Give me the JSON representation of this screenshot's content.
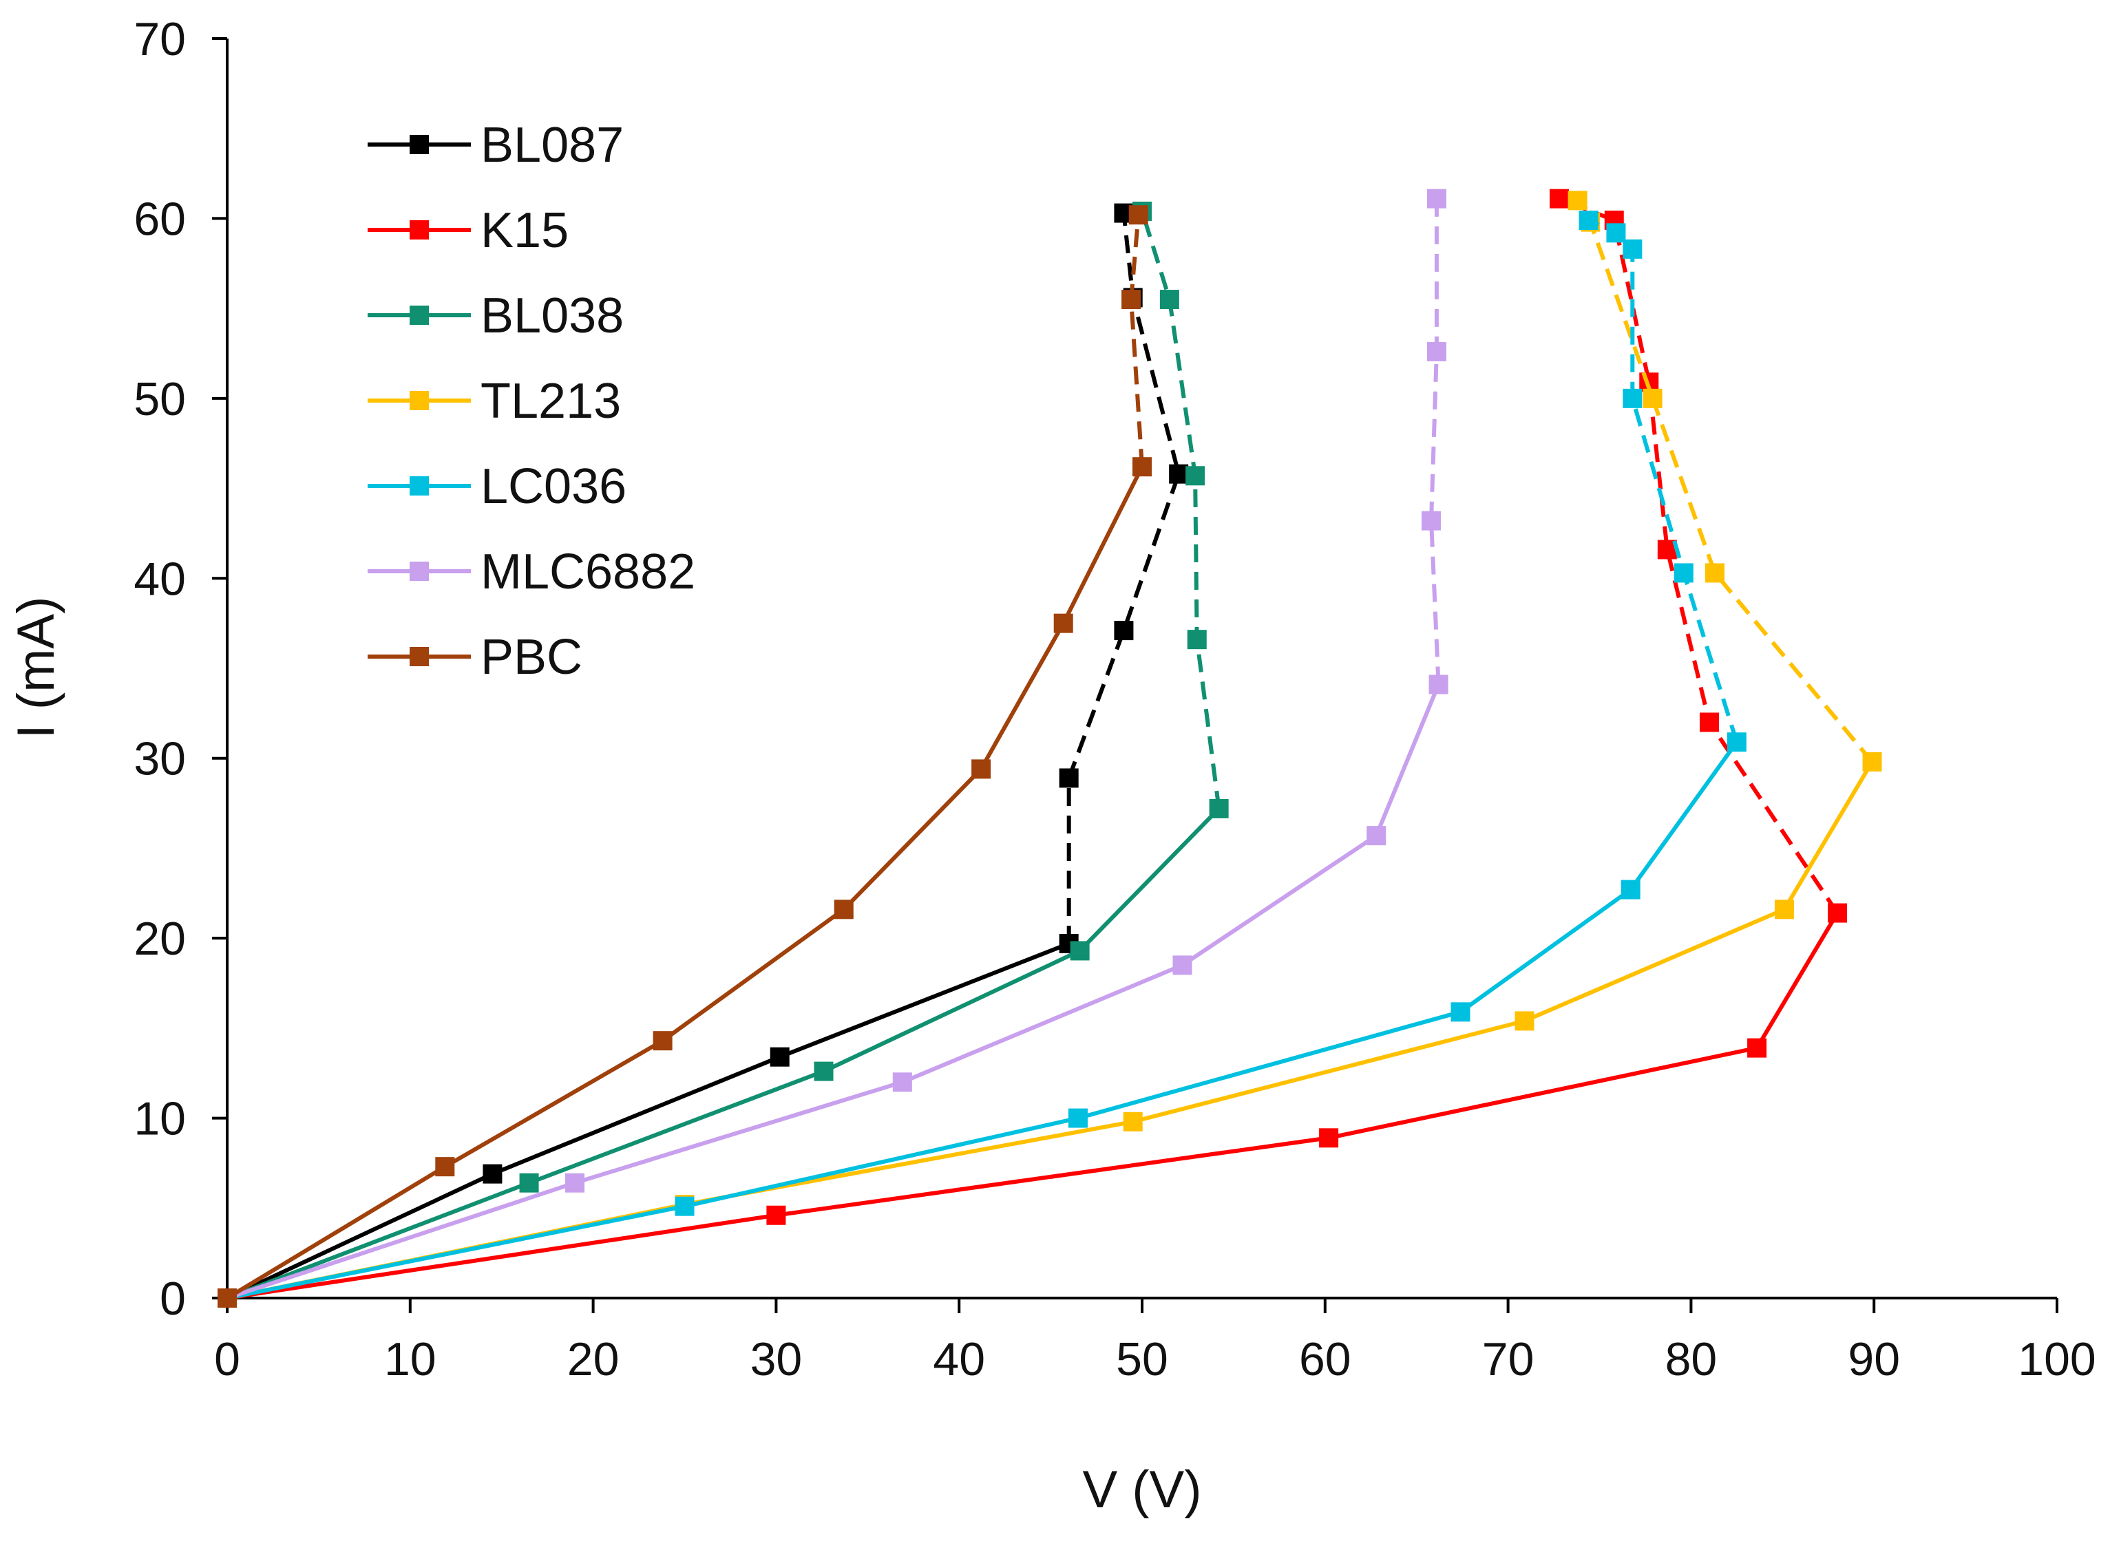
{
  "chart_data": {
    "type": "line",
    "title": "",
    "xlabel": "V (V)",
    "ylabel": "I (mA)",
    "xlim": [
      0,
      100
    ],
    "ylim": [
      0,
      70
    ],
    "xticks": [
      0,
      10,
      20,
      30,
      40,
      50,
      60,
      70,
      80,
      90,
      100
    ],
    "yticks": [
      0,
      10,
      20,
      30,
      40,
      50,
      60,
      70
    ],
    "grid": false,
    "legend_position": "top-left",
    "series": [
      {
        "name": "BL087",
        "color": "#000000",
        "solid": [
          [
            0,
            0
          ],
          [
            14.5,
            6.9
          ],
          [
            30.2,
            13.4
          ],
          [
            46,
            19.7
          ]
        ],
        "dashed": [
          [
            46,
            19.7
          ],
          [
            46,
            28.9
          ],
          [
            49,
            37.1
          ],
          [
            52,
            45.8
          ],
          [
            49.5,
            55.6
          ],
          [
            49,
            60.3
          ]
        ]
      },
      {
        "name": "K15",
        "color": "#ff0000",
        "solid": [
          [
            0,
            0
          ],
          [
            30,
            4.6
          ],
          [
            60.2,
            8.9
          ],
          [
            83.6,
            13.9
          ],
          [
            88,
            21.4
          ]
        ],
        "dashed": [
          [
            88,
            21.4
          ],
          [
            81,
            32
          ],
          [
            78.7,
            41.6
          ],
          [
            77.7,
            50.9
          ],
          [
            75.8,
            59.9
          ],
          [
            72.8,
            61.1
          ]
        ]
      },
      {
        "name": "BL038",
        "color": "#109070",
        "solid": [
          [
            0,
            0
          ],
          [
            16.5,
            6.4
          ],
          [
            32.6,
            12.6
          ],
          [
            46.6,
            19.3
          ],
          [
            54.2,
            27.2
          ]
        ],
        "dashed": [
          [
            54.2,
            27.2
          ],
          [
            53,
            36.6
          ],
          [
            52.9,
            45.7
          ],
          [
            51.5,
            55.5
          ],
          [
            50,
            60.4
          ]
        ]
      },
      {
        "name": "TL213",
        "color": "#ffc000",
        "solid": [
          [
            0,
            0
          ],
          [
            25,
            5.2
          ],
          [
            49.5,
            9.8
          ],
          [
            70.9,
            15.4
          ],
          [
            85.1,
            21.6
          ],
          [
            89.9,
            29.8
          ]
        ],
        "dashed": [
          [
            89.9,
            29.8
          ],
          [
            81.3,
            40.3
          ],
          [
            77.9,
            50
          ],
          [
            74.5,
            59.8
          ],
          [
            73.8,
            61
          ]
        ]
      },
      {
        "name": "LC036",
        "color": "#00c0e0",
        "solid": [
          [
            0,
            0
          ],
          [
            25,
            5.1
          ],
          [
            46.5,
            10
          ],
          [
            67.4,
            15.9
          ],
          [
            76.7,
            22.7
          ],
          [
            82.5,
            30.9
          ]
        ],
        "dashed": [
          [
            82.5,
            30.9
          ],
          [
            79.6,
            40.3
          ],
          [
            76.8,
            50
          ],
          [
            76.8,
            58.3
          ],
          [
            75.9,
            59.2
          ],
          [
            74.4,
            59.9
          ]
        ]
      },
      {
        "name": "MLC6882",
        "color": "#c8a0ee",
        "solid": [
          [
            0,
            0
          ],
          [
            19,
            6.4
          ],
          [
            36.9,
            12
          ],
          [
            52.2,
            18.5
          ],
          [
            62.8,
            25.7
          ],
          [
            66.2,
            34.1
          ]
        ],
        "dashed": [
          [
            66.2,
            34.1
          ],
          [
            65.8,
            43.2
          ],
          [
            66.1,
            52.6
          ],
          [
            66.1,
            61.1
          ]
        ]
      },
      {
        "name": "PBC",
        "color": "#a0400a",
        "solid": [
          [
            0,
            0
          ],
          [
            11.9,
            7.3
          ],
          [
            23.8,
            14.3
          ],
          [
            33.7,
            21.6
          ],
          [
            41.2,
            29.4
          ],
          [
            45.7,
            37.5
          ],
          [
            50,
            46.2
          ]
        ],
        "dashed": [
          [
            50,
            46.2
          ],
          [
            49.4,
            55.5
          ],
          [
            49.8,
            60.2
          ]
        ]
      }
    ]
  }
}
